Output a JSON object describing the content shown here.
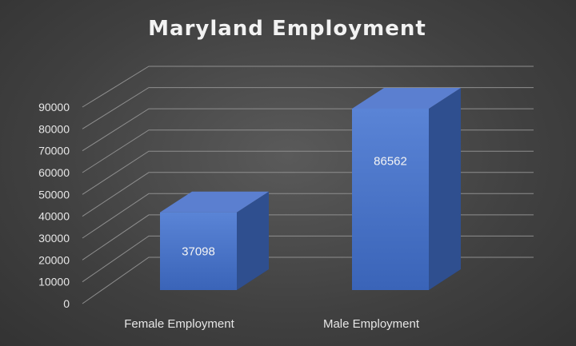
{
  "chart_data": {
    "type": "bar",
    "title": "Maryland Employment",
    "categories": [
      "Female Employment",
      "Male Employment"
    ],
    "values": [
      37098,
      86562
    ],
    "data_labels": [
      "37098",
      "86562"
    ],
    "ylim": [
      0,
      90000
    ],
    "y_ticks": [
      "0",
      "10000",
      "20000",
      "30000",
      "40000",
      "50000",
      "60000",
      "70000",
      "80000",
      "90000"
    ],
    "xlabel": "",
    "ylabel": "",
    "grid": true,
    "style": "3d-column",
    "colors": {
      "bar_front": "#4472c4",
      "bar_top": "#5b7fd0",
      "bar_side": "#2f4f8f",
      "background": "#404040",
      "text": "#e6e6e6"
    }
  }
}
